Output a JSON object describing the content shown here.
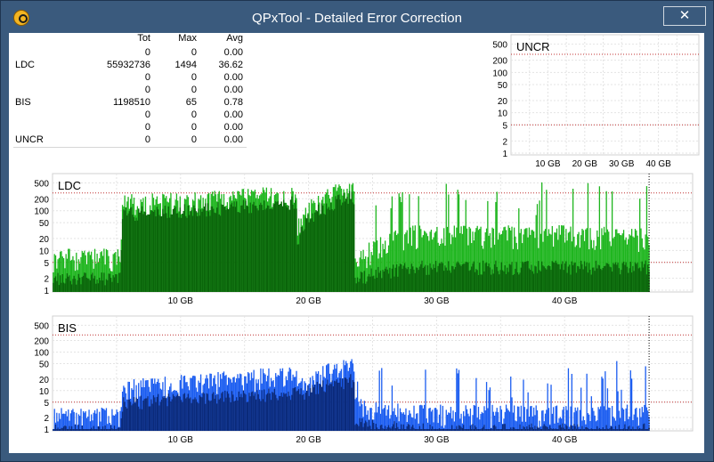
{
  "window": {
    "title": "QPxTool - Detailed Error Correction",
    "close_glyph": "✕",
    "icon": "qpxtool-logo-icon"
  },
  "stats": {
    "headers": [
      "",
      "Tot",
      "Max",
      "Avg"
    ],
    "rows": [
      [
        "",
        "0",
        "0",
        "0.00"
      ],
      [
        "LDC",
        "55932736",
        "1494",
        "36.62"
      ],
      [
        "",
        "0",
        "0",
        "0.00"
      ],
      [
        "",
        "0",
        "0",
        "0.00"
      ],
      [
        "BIS",
        "1198510",
        "65",
        "0.78"
      ],
      [
        "",
        "0",
        "0",
        "0.00"
      ],
      [
        "",
        "0",
        "0",
        "0.00"
      ],
      [
        "UNCR",
        "0",
        "0",
        "0.00"
      ]
    ]
  },
  "chart_data": [
    {
      "type": "bar",
      "title": "UNCR",
      "x_ticks": [
        "10 GB",
        "20 GB",
        "30 GB",
        "40 GB"
      ],
      "y_ticks": [
        "1",
        "2",
        "5",
        "10",
        "20",
        "50",
        "100",
        "200",
        "500"
      ],
      "y_scale": "log",
      "xlim_gb": [
        0,
        50
      ],
      "ylim": [
        1,
        700
      ],
      "threshold_lines": [
        5,
        280
      ],
      "series": [
        {
          "values": []
        }
      ]
    },
    {
      "type": "bar",
      "title": "LDC",
      "x_ticks": [
        "10 GB",
        "20 GB",
        "30 GB",
        "40 GB"
      ],
      "y_ticks": [
        "1",
        "2",
        "5",
        "10",
        "20",
        "50",
        "100",
        "200",
        "500"
      ],
      "y_scale": "log",
      "xlim_gb": [
        0,
        50
      ],
      "ylim": [
        1,
        700
      ],
      "threshold_lines": [
        5,
        280
      ],
      "end_marker_gb": 46.6,
      "colors": {
        "max": "#1db51d",
        "avg": "#0a640a"
      },
      "series": [
        {
          "x_gb": [
            0,
            5.3,
            5.5,
            12,
            19,
            19.1,
            23.5,
            23.6,
            28,
            35,
            40,
            46.6
          ],
          "values": [
            8,
            8,
            180,
            220,
            300,
            40,
            450,
            5,
            30,
            30,
            30,
            25
          ]
        },
        {
          "x_gb": [
            0,
            5.3,
            5.5,
            12,
            19,
            19.1,
            23.5,
            23.6,
            28,
            35,
            40,
            46.6
          ],
          "values": [
            2,
            2,
            90,
            110,
            170,
            18,
            250,
            2,
            4,
            4,
            4,
            4
          ]
        }
      ]
    },
    {
      "type": "bar",
      "title": "BIS",
      "x_ticks": [
        "10 GB",
        "20 GB",
        "30 GB",
        "40 GB"
      ],
      "y_ticks": [
        "1",
        "2",
        "5",
        "10",
        "20",
        "50",
        "100",
        "200",
        "500"
      ],
      "y_scale": "log",
      "xlim_gb": [
        0,
        50
      ],
      "ylim": [
        1,
        700
      ],
      "threshold_lines": [
        5,
        280
      ],
      "end_marker_gb": 46.6,
      "colors": {
        "max": "#1a5cf0",
        "avg": "#0b2a7a"
      },
      "series": [
        {
          "x_gb": [
            0,
            5.3,
            5.5,
            12,
            19,
            19.1,
            23.5,
            23.6,
            28,
            35,
            40,
            46.6
          ],
          "values": [
            2.5,
            2.5,
            13,
            20,
            30,
            14,
            55,
            5,
            3,
            3,
            3,
            3
          ]
        },
        {
          "x_gb": [
            0,
            5.3,
            5.5,
            12,
            19,
            19.1,
            23.5,
            23.6,
            28,
            35,
            40,
            46.6
          ],
          "values": [
            1,
            1,
            5,
            7,
            9,
            8,
            20,
            1.5,
            1,
            1,
            1,
            1
          ]
        }
      ]
    }
  ]
}
